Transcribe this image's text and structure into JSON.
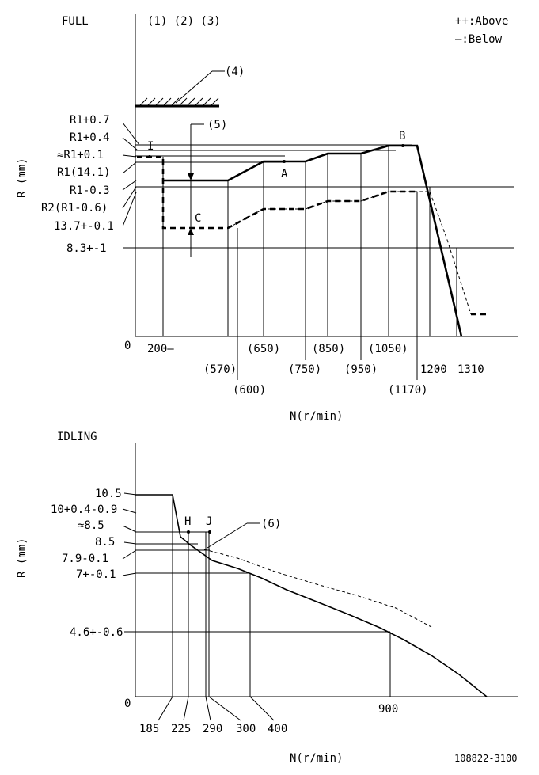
{
  "full": {
    "title": "FULL",
    "conditions": "(1) (2) (3)",
    "legend": {
      "above": "++:Above",
      "below": "—:Below"
    },
    "ylabel": "R (mm)",
    "xlabel": "N(r/min)",
    "origin": "0",
    "y_labels": [
      "R1+0.7",
      "R1+0.4",
      "≈R1+0.1",
      "R1(14.1)",
      "R1-0.3",
      "R2(R1-0.6)",
      "13.7+-0.1",
      "8.3+-1"
    ],
    "x_labels": [
      "200—",
      "(570)",
      "(600)",
      "(650)",
      "(750)",
      "(850)",
      "(950)",
      "(1050)",
      "(1170)",
      "1200",
      "1310"
    ],
    "callouts": [
      "(4)",
      "(5)"
    ],
    "points": [
      "I",
      "A",
      "B",
      "C"
    ]
  },
  "idling": {
    "title": "IDLING",
    "ylabel": "R (mm)",
    "xlabel": "N(r/min)",
    "origin": "0",
    "y_labels": [
      "10.5",
      "10+0.4-0.9",
      "≈8.5",
      "8.5",
      "7.9-0.1",
      "7+-0.1",
      "4.6+-0.6"
    ],
    "x_labels": [
      "185",
      "225",
      "290",
      "300",
      "400",
      "900"
    ],
    "callouts": [
      "(6)"
    ],
    "points": [
      "H",
      "J"
    ]
  },
  "part_number": "108822-3100"
}
